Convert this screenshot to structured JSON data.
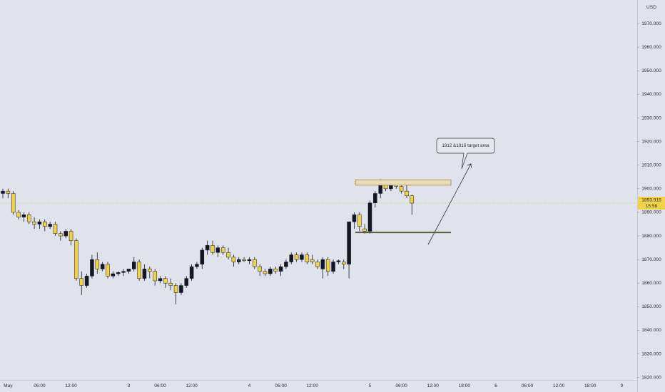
{
  "chart_data": {
    "type": "candlestick",
    "currency": "USD",
    "categories": [
      null,
      "May",
      null,
      null,
      null,
      null,
      null,
      "06:00",
      null,
      null,
      null,
      null,
      null,
      "12:00",
      null,
      null,
      null,
      null,
      null,
      null,
      null,
      null,
      null,
      null,
      "3",
      null,
      null,
      null,
      null,
      null,
      "06:00",
      null,
      null,
      null,
      null,
      null,
      "12:00",
      null,
      null,
      null,
      null,
      null,
      null,
      null,
      null,
      null,
      null,
      "4",
      null,
      null,
      null,
      null,
      null,
      "06:00",
      null,
      null,
      null,
      null,
      null,
      "12:00",
      null,
      null,
      null,
      null,
      null,
      null,
      null,
      null,
      null,
      null,
      "5",
      null,
      null,
      null,
      null,
      null,
      "06:00",
      null,
      null,
      null,
      null,
      null,
      "12:00",
      null,
      null,
      null,
      null,
      null,
      "18:00",
      null,
      null,
      null,
      null,
      null,
      "6",
      null,
      null,
      null,
      null,
      null,
      "06:00",
      null,
      null,
      null,
      null,
      null,
      "12:00",
      null,
      null,
      null,
      null,
      null,
      "18:00",
      null,
      null,
      null,
      null,
      null,
      "9"
    ],
    "open": [
      1898,
      1899,
      1898,
      1890,
      1888,
      1889,
      1886,
      1885,
      1886,
      1884,
      1885,
      1881,
      1880,
      1882,
      1878,
      1862,
      1859,
      1863,
      1870,
      1866,
      1868,
      1863,
      1864,
      1864.5,
      1865,
      1866,
      1869,
      1862,
      1866,
      1865,
      1861,
      1862,
      1860,
      1859,
      1856,
      1859,
      1862,
      1867,
      1868,
      1874,
      1876,
      1873,
      1875,
      1873,
      1871,
      1869,
      1870,
      1869.5,
      1870,
      1867,
      1865,
      1864,
      1866,
      1865,
      1867,
      1869,
      1872,
      1870,
      1872,
      1870,
      1869,
      1866,
      1870,
      1865,
      1869,
      1869,
      1868,
      1886,
      1889,
      1883,
      1882,
      1894,
      1898,
      1902,
      1900,
      1902,
      1901,
      1899,
      1897,
      null,
      null,
      null,
      null,
      null,
      null,
      null,
      null,
      null,
      null,
      null,
      null,
      null,
      null,
      null,
      null,
      null,
      null,
      null,
      null,
      null,
      null,
      null,
      null,
      null,
      null,
      null,
      null,
      null,
      null,
      null,
      null,
      null,
      null,
      null,
      null,
      null,
      null,
      null,
      null
    ],
    "high": [
      1900,
      1900,
      1899,
      1891,
      1890,
      1890,
      1888,
      1887,
      1887,
      1886,
      1886,
      1882,
      1883,
      1883,
      1879,
      1865,
      1864,
      1872,
      1873,
      1869,
      1869,
      1865,
      1865,
      1866,
      1866,
      1871,
      1870,
      1868,
      1867,
      1866,
      1863,
      1863,
      1862,
      1860,
      1860,
      1863,
      1868,
      1869,
      1875,
      1878,
      1878,
      1876,
      1876,
      1875,
      1872,
      1871,
      1871,
      1871,
      1871,
      1868,
      1866,
      1867,
      1867,
      1868,
      1870,
      1873,
      1873,
      1873,
      1873,
      1872,
      1870,
      1871,
      1871,
      1870,
      1870,
      1870,
      1886,
      1890,
      1890,
      1885,
      1895,
      1899,
      1904,
      1903,
      1903,
      1903,
      1903,
      1902,
      1897.5,
      null,
      null,
      null,
      null,
      null,
      null,
      null,
      null,
      null,
      null,
      null,
      null,
      null,
      null,
      null,
      null,
      null,
      null,
      null,
      null,
      null,
      null,
      null,
      null,
      null,
      null,
      null,
      null,
      null,
      null,
      null,
      null,
      null,
      null,
      null,
      null,
      null,
      null,
      null,
      null
    ],
    "low": [
      1896,
      1896,
      1889,
      1887,
      1886,
      1885,
      1883,
      1883,
      1882,
      1883,
      1880,
      1878,
      1879,
      1876,
      1861,
      1855,
      1858,
      1862,
      1864,
      1865,
      1862,
      1862,
      1863,
      1863,
      1864,
      1865,
      1861,
      1861,
      1862,
      1859,
      1860,
      1858,
      1857,
      1851,
      1855,
      1858,
      1861,
      1866,
      1866,
      1872,
      1872,
      1871,
      1872,
      1870,
      1867,
      1868,
      1869,
      1868,
      1866,
      1863,
      1863,
      1863,
      1864,
      1863,
      1866,
      1868,
      1869,
      1869,
      1868,
      1868,
      1866,
      1862,
      1863,
      1864,
      1868,
      1866,
      1862,
      1883,
      1882,
      1881,
      1881,
      1892,
      1896,
      1899,
      1899,
      1900,
      1898,
      1896,
      1889,
      null,
      null,
      null,
      null,
      null,
      null,
      null,
      null,
      null,
      null,
      null,
      null,
      null,
      null,
      null,
      null,
      null,
      null,
      null,
      null,
      null,
      null,
      null,
      null,
      null,
      null,
      null,
      null,
      null,
      null,
      null,
      null,
      null,
      null,
      null,
      null,
      null,
      null,
      null,
      null
    ],
    "close": [
      1899,
      1898,
      1890,
      1888,
      1889,
      1886,
      1885,
      1886,
      1884,
      1885,
      1881,
      1880,
      1882,
      1878,
      1862,
      1859,
      1863,
      1870,
      1866,
      1868,
      1863,
      1864,
      1864.5,
      1865,
      1866,
      1869,
      1862,
      1866,
      1865,
      1861,
      1862,
      1860,
      1859,
      1856,
      1859,
      1862,
      1867,
      1868,
      1874,
      1876,
      1873,
      1875,
      1873,
      1871,
      1869,
      1870,
      1869.5,
      1870,
      1867,
      1865,
      1864,
      1866,
      1865,
      1867,
      1869,
      1872,
      1870,
      1872,
      1869,
      1869,
      1867,
      1870,
      1865,
      1869,
      1869.5,
      1868,
      1886,
      1889,
      1884,
      1882,
      1894,
      1898,
      1902,
      1900,
      1902,
      1901,
      1899,
      1897,
      1893.915,
      null,
      null,
      null,
      null,
      null,
      null,
      null,
      null,
      null,
      null,
      null,
      null,
      null,
      null,
      null,
      null,
      null,
      null,
      null,
      null,
      null,
      null,
      null,
      null,
      null,
      null,
      null,
      null,
      null,
      null,
      null,
      null,
      null,
      null,
      null,
      null,
      null,
      null,
      null,
      null
    ],
    "up_color": "#131722",
    "down_color": "#f2d14b",
    "ylim": [
      1819,
      1980
    ],
    "yticks": [
      {
        "value": 1820,
        "label": "1820.000"
      },
      {
        "value": 1830,
        "label": "1830.000"
      },
      {
        "value": 1840,
        "label": "1840.000"
      },
      {
        "value": 1850,
        "label": "1850.000"
      },
      {
        "value": 1860,
        "label": "1860.000"
      },
      {
        "value": 1870,
        "label": "1870.000"
      },
      {
        "value": 1880,
        "label": "1880.000"
      },
      {
        "value": 1890,
        "label": "1890.000"
      },
      {
        "value": 1900,
        "label": "1900.000"
      },
      {
        "value": 1910,
        "label": "1910.000"
      },
      {
        "value": 1920,
        "label": "1920.000"
      },
      {
        "value": 1930,
        "label": "1930.000"
      },
      {
        "value": 1940,
        "label": "1940.000"
      },
      {
        "value": 1950,
        "label": "1950.000"
      },
      {
        "value": 1960,
        "label": "1960.000"
      },
      {
        "value": 1970,
        "label": "1970.000"
      }
    ],
    "grid": false,
    "last_price": 1893.915,
    "countdown": "15:58",
    "target_zone": {
      "low": 1901.5,
      "high": 1903.8
    },
    "support_level": 1881.5,
    "annotation": "1912 &1916 target area"
  }
}
